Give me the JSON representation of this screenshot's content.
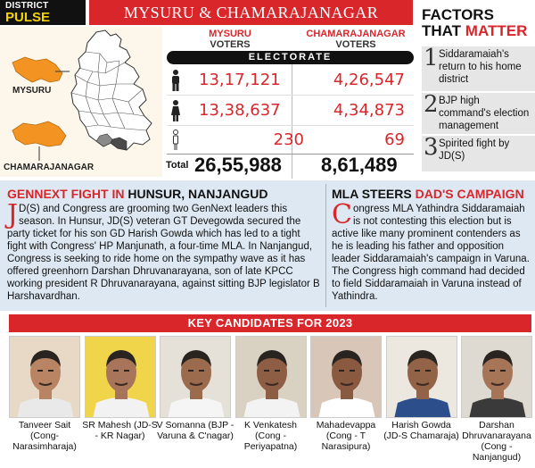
{
  "header": {
    "district_label": "DISTRICT",
    "pulse_label": "PULSE",
    "title": "MYSURU & CHAMARAJANAGAR"
  },
  "map": {
    "labels": {
      "mysuru": "MYSURU",
      "chamarajanagar": "CHAMARAJANAGAR"
    },
    "colors": {
      "highlight": "#f39422",
      "state_fill": "#ffffff",
      "background": "#fdf6ea"
    }
  },
  "stats": {
    "columns": [
      {
        "district": "MYSURU",
        "sub": "VOTERS"
      },
      {
        "district": "CHAMARAJANAGAR",
        "sub": "VOTERS"
      }
    ],
    "electorate_label": "ELECTORATE",
    "rows": [
      {
        "icon": "male-icon",
        "mysuru": "13,17,121",
        "chamarajanagar": "4,26,547"
      },
      {
        "icon": "female-icon",
        "mysuru": "13,38,637",
        "chamarajanagar": "4,34,873"
      },
      {
        "icon": "third-gender-icon",
        "mysuru": "230",
        "chamarajanagar": "69"
      }
    ],
    "total_label": "Total",
    "total": {
      "mysuru": "26,55,988",
      "chamarajanagar": "8,61,489"
    }
  },
  "factors": {
    "title_line1": "FACTORS",
    "title_that": "THAT",
    "title_matter": "MATTER",
    "items": [
      {
        "num": "1",
        "text": "Siddaramaiah's return to his home district"
      },
      {
        "num": "2",
        "text": "BJP high command's election management"
      },
      {
        "num": "3",
        "text": "Spirited fight by JD(S)"
      }
    ]
  },
  "articles": [
    {
      "headline_red": "GENNEXT FIGHT IN",
      "headline_black": " HUNSUR, NANJANGUD",
      "dropcap": "J",
      "body": "D(S) and Congress are grooming two GenNext leaders this season. In Hunsur, JD(S) veteran GT Devegowda secured the party ticket for his son GD Harish Gowda which has led to a tight fight with Congress' HP Manjunath, a four-time MLA. In Nanjangud, Congress is seeking to ride home on the sympathy wave as it has offered greenhorn Darshan Dhruvanarayana, son of late KPCC working president R Dhruvanarayana, against sitting BJP legislator B Harshavardhan."
    },
    {
      "headline_black": "MLA STEERS ",
      "headline_red": "DAD'S CAMPAIGN",
      "dropcap": "C",
      "body": "ongress MLA Yathindra Siddaramaiah is not contesting this election but is active like many prominent contenders as he is leading his father and opposition leader Siddaramaiah's campaign in Varuna. The Congress high command had decided to field Siddaramaiah in Varuna instead of Yathindra."
    }
  ],
  "candidates": {
    "banner": "KEY CANDIDATES FOR 2023",
    "items": [
      {
        "name": "Tanveer Sait (Cong- Narasimharaja)",
        "bg": "#e7d9c6",
        "skin": "#b98463",
        "shirt": "#e9e9e9"
      },
      {
        "name": "SR Mahesh (JD-S - KR Nagar)",
        "bg": "#f0d44a",
        "skin": "#a8745a",
        "shirt": "#f2f2f2"
      },
      {
        "name": "V Somanna (BJP - Varuna & C'nagar)",
        "bg": "#e6e1d8",
        "skin": "#9c6b4e",
        "shirt": "#f5f5f5"
      },
      {
        "name": "K Venkatesh (Cong - Periyapatna)",
        "bg": "#d9d2c3",
        "skin": "#8d5e44",
        "shirt": "#f3f3f3"
      },
      {
        "name": "Mahadevappa (Cong - T Narasipura)",
        "bg": "#d8c7b8",
        "skin": "#8a5a40",
        "shirt": "#ffffff"
      },
      {
        "name": "Harish Gowda (JD-S Chamaraja)",
        "bg": "#ece7df",
        "skin": "#936347",
        "shirt": "#2c4e8a"
      },
      {
        "name": "Darshan Dhruvanarayana (Cong - Nanjangud)",
        "bg": "#dedad1",
        "skin": "#a67456",
        "shirt": "#3a3a3a"
      }
    ]
  }
}
